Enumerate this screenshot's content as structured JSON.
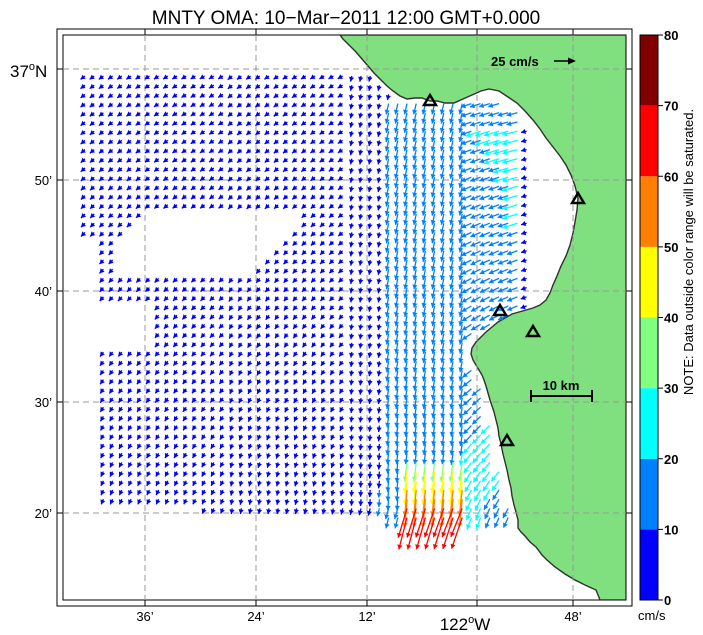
{
  "title": "MNTY OMA: 10−Mar−2011 12:00 GMT+0.000",
  "lat_labels": [
    {
      "text": "37",
      "deg": "o",
      "suffix": "N",
      "big": true
    },
    {
      "text": "50’"
    },
    {
      "text": "40’"
    },
    {
      "text": "30’"
    },
    {
      "text": "20’"
    }
  ],
  "lon_labels": [
    {
      "text": "36’"
    },
    {
      "text": "24’"
    },
    {
      "text": "12’"
    },
    {
      "text": "122",
      "deg": "o",
      "suffix": "W",
      "big": true
    },
    {
      "text": "48’"
    }
  ],
  "reference_arrow": {
    "label": "25 cm/s",
    "speed_cm_s": 25
  },
  "scale_bar": {
    "label": "10 km",
    "length_km": 10
  },
  "colorbar": {
    "ticks": [
      "0",
      "10",
      "20",
      "30",
      "40",
      "50",
      "60",
      "70",
      "80"
    ],
    "colors": [
      "#0000ff",
      "#0080ff",
      "#00ffff",
      "#80ff80",
      "#ffff00",
      "#ff8000",
      "#ff0000",
      "#800000"
    ],
    "unit": "cm/s",
    "note": "NOTE: Data outside color range will be saturated."
  },
  "colors": {
    "land": "#80e080",
    "coast": "#303030"
  },
  "chart_data": {
    "type": "vector-field",
    "title": "MNTY OMA: 10−Mar−2011 12:00 GMT+0.000",
    "lon_range_deg": [
      -122.69,
      -121.72
    ],
    "lat_range_deg": [
      36.22,
      37.11
    ],
    "station_markers": 5
  }
}
